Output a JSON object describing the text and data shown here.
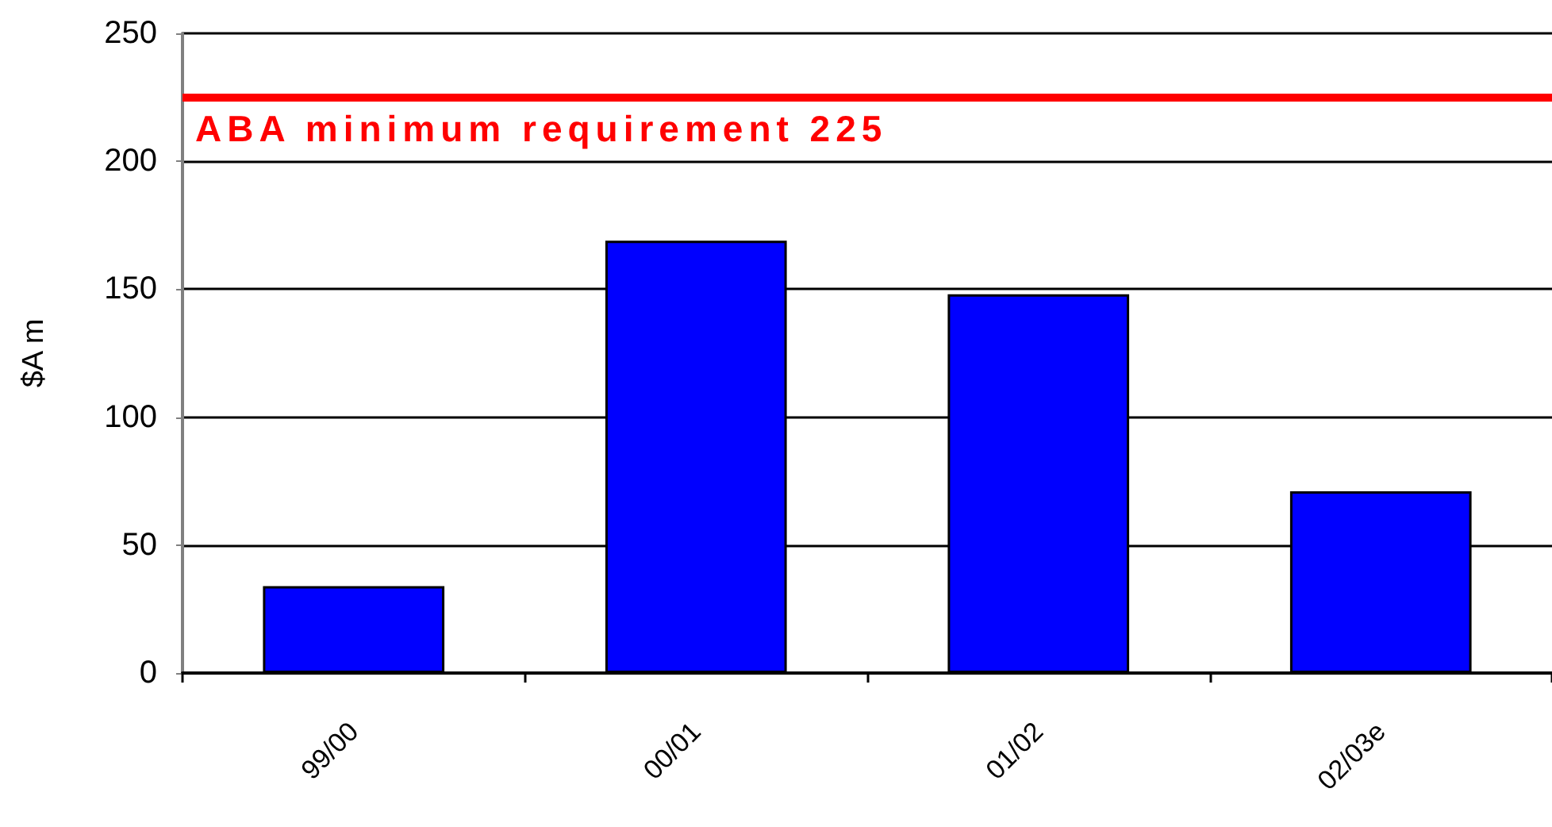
{
  "chart_data": {
    "type": "bar",
    "ylabel": "$A m",
    "categories": [
      "99/00",
      "00/01",
      "01/02",
      "02/03e"
    ],
    "values": [
      34,
      169,
      148,
      71
    ],
    "color": "#0000ff",
    "ylim": [
      0,
      250
    ],
    "yticks": [
      0,
      50,
      100,
      150,
      200,
      250
    ],
    "grid": "y",
    "ref_lines": [
      {
        "axis": "y",
        "value": 225,
        "label": "ABA minimum requirement 225",
        "color": "#ff0000"
      }
    ]
  }
}
